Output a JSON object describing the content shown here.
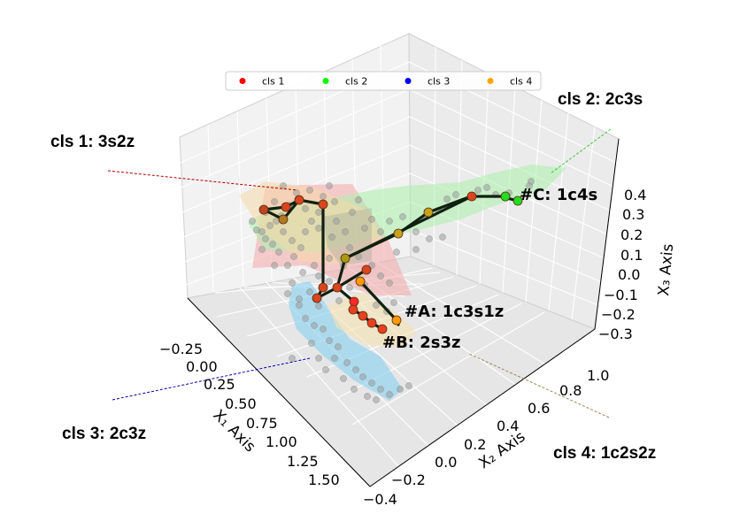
{
  "chart_data": {
    "type": "scatter",
    "projection": "3d",
    "title": "",
    "xlabel": "X₁ Axis",
    "ylabel": "X₂ Axis",
    "zlabel": "X₃ Axis",
    "x_ticks": [
      "−0.25",
      "0.00",
      "0.25",
      "0.50",
      "0.75",
      "1.00",
      "1.25",
      "1.50"
    ],
    "y_ticks": [
      "−0.4",
      "−0.2",
      "0.0",
      "0.2",
      "0.4",
      "0.6",
      "0.8",
      "1.0"
    ],
    "z_ticks": [
      "−0.3",
      "−0.2",
      "−0.1",
      "0.0",
      "0.1",
      "0.2",
      "0.3",
      "0.4"
    ],
    "grid": true,
    "legend_position": "top-center",
    "legend": [
      {
        "name": "cls 1",
        "color": "#ff0000"
      },
      {
        "name": "cls 2",
        "color": "#00ff00"
      },
      {
        "name": "cls 3",
        "color": "#0000ff"
      },
      {
        "name": "cls 4",
        "color": "#ffa500"
      }
    ],
    "annotations": [
      {
        "label": "#A: 1c3s1z"
      },
      {
        "label": "#B: 2s3z"
      },
      {
        "label": "#C: 1c4s"
      }
    ],
    "callouts": [
      {
        "label": "cls 1: 3s2z",
        "color": "#b00000"
      },
      {
        "label": "cls 2: 2c3s",
        "color": "#33cc33"
      },
      {
        "label": "cls 3: 2c3z",
        "color": "#0000aa"
      },
      {
        "label": "cls 4: 1c2s2z",
        "color": "#998855"
      }
    ]
  }
}
